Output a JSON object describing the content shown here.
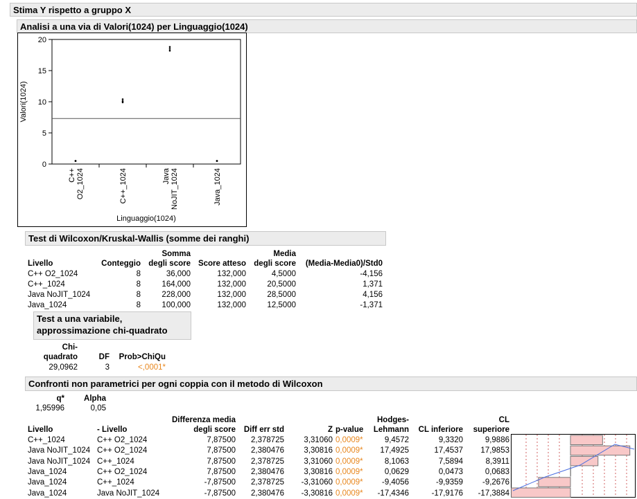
{
  "header": {
    "title": "Stima Y rispetto a gruppo X"
  },
  "oneway": {
    "title": "Analisi a una via di Valori(1024) per Linguaggio(1024)"
  },
  "chart_data": {
    "type": "strip",
    "y_label": "Valori(1024)",
    "x_label": "Linguaggio(1024)",
    "categories": [
      "C++\nO2_1024",
      "C++_1024",
      "Java\nNoJIT_1024",
      "Java_1024"
    ],
    "values": [
      [
        0.5,
        0.5,
        0.5
      ],
      [
        9.9,
        10.1,
        10.4
      ],
      [
        18.2,
        18.5,
        18.8
      ],
      [
        0.5,
        0.5,
        0.5
      ]
    ],
    "mean": 7.3,
    "ylim": [
      0,
      20
    ],
    "yticks": [
      0,
      5,
      10,
      15,
      20
    ],
    "color": "#000000",
    "mean_color": "#555555"
  },
  "flag_color": "#e8871e",
  "wilcoxon": {
    "title": "Test di Wilcoxon/Kruskal-Wallis (somme dei ranghi)",
    "columns": [
      "Livello",
      "Conteggio",
      "Somma\ndegli score",
      "Score atteso",
      "Media\ndegli score",
      "(Media-Media0)/Std0"
    ],
    "rows": [
      [
        "C++ O2_1024",
        "8",
        "36,000",
        "132,000",
        "4,5000",
        "-4,156"
      ],
      [
        "C++_1024",
        "8",
        "164,000",
        "132,000",
        "20,5000",
        "1,371"
      ],
      [
        "Java NoJIT_1024",
        "8",
        "228,000",
        "132,000",
        "28,5000",
        "4,156"
      ],
      [
        "Java_1024",
        "8",
        "100,000",
        "132,000",
        "12,5000",
        "-1,371"
      ]
    ]
  },
  "chi": {
    "title": "Test a una variabile,\napprossimazione chi-quadrato",
    "columns": [
      "Chi-\nquadrato",
      "DF",
      "Prob>ChiQu"
    ],
    "rows": [
      [
        "29,0962",
        "3",
        "<,0001*"
      ]
    ],
    "flag_col": 2
  },
  "compare": {
    "title": "Confronti non parametrici per ogni coppia con il metodo di Wilcoxon",
    "params": {
      "columns": [
        "q*",
        "Alpha"
      ],
      "rows": [
        [
          "1,95996",
          "0,05"
        ]
      ]
    },
    "columns": [
      "Livello",
      "- Livello",
      "Differenza media\ndegli score",
      "Diff err std",
      "Z",
      "p-value",
      "Hodges-\nLehmann",
      "CL inferiore",
      "CL\nsuperiore"
    ],
    "rows": [
      [
        "C++_1024",
        "C++ O2_1024",
        "7,87500",
        "2,378725",
        "3,31060",
        "0,0009*",
        "9,4572",
        "9,3320",
        "9,9886"
      ],
      [
        "Java NoJIT_1024",
        "C++ O2_1024",
        "7,87500",
        "2,380476",
        "3,30816",
        "0,0009*",
        "17,4925",
        "17,4537",
        "17,9853"
      ],
      [
        "Java NoJIT_1024",
        "C++_1024",
        "7,87500",
        "2,378725",
        "3,31060",
        "0,0009*",
        "8,1063",
        "7,5894",
        "8,3911"
      ],
      [
        "Java_1024",
        "C++ O2_1024",
        "7,87500",
        "2,380476",
        "3,30816",
        "0,0009*",
        "0,0629",
        "0,0473",
        "0,0683"
      ],
      [
        "Java_1024",
        "C++_1024",
        "-7,87500",
        "2,378725",
        "-3,31060",
        "0,0009*",
        "-9,4056",
        "-9,9359",
        "-9,2676"
      ],
      [
        "Java_1024",
        "Java NoJIT_1024",
        "-7,87500",
        "2,380476",
        "-3,30816",
        "0,0009*",
        "-17,4346",
        "-17,9176",
        "-17,3884"
      ]
    ],
    "flag_col": 5,
    "bar_col": 6,
    "bar_color": "#f8c8c8"
  }
}
